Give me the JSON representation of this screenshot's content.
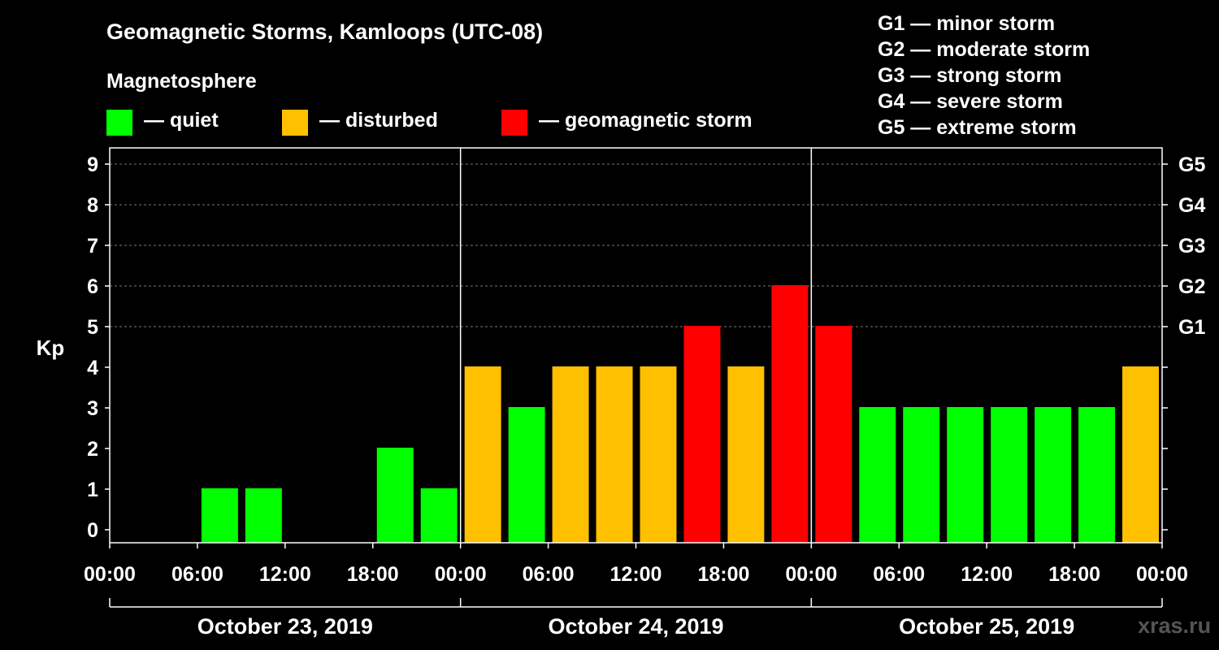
{
  "header": {
    "title": "Geomagnetic Storms, Kamloops (UTC-08)",
    "subtitle": "Magnetosphere"
  },
  "legend": {
    "items": [
      {
        "label": "— quiet",
        "color": "#00ff00"
      },
      {
        "label": "— disturbed",
        "color": "#ffc000"
      },
      {
        "label": "— geomagnetic storm",
        "color": "#ff0000"
      }
    ]
  },
  "g_scale_legend": [
    "G1 — minor storm",
    "G2 — moderate storm",
    "G3 — strong storm",
    "G4 — severe storm",
    "G5 — extreme storm"
  ],
  "watermark": "xras.ru",
  "chart_data": {
    "type": "bar",
    "title": "Geomagnetic Storms, Kamloops (UTC-08)",
    "ylabel": "Kp",
    "ylim": [
      0,
      9
    ],
    "y_ticks": [
      "0",
      "1",
      "2",
      "3",
      "4",
      "5",
      "6",
      "7",
      "8",
      "9"
    ],
    "right_ticks": [
      {
        "kp": 5,
        "label": "G1"
      },
      {
        "kp": 6,
        "label": "G2"
      },
      {
        "kp": 7,
        "label": "G3"
      },
      {
        "kp": 8,
        "label": "G4"
      },
      {
        "kp": 9,
        "label": "G5"
      }
    ],
    "x_tick_labels": [
      "00:00",
      "06:00",
      "12:00",
      "18:00",
      "00:00",
      "06:00",
      "12:00",
      "18:00",
      "00:00",
      "06:00",
      "12:00",
      "18:00",
      "00:00"
    ],
    "days": [
      "October 23, 2019",
      "October 24, 2019",
      "October 25, 2019"
    ],
    "interval_hours": 3,
    "values": [
      0,
      0,
      1,
      1,
      0,
      0,
      2,
      1,
      4,
      3,
      4,
      4,
      4,
      5,
      4,
      6,
      5,
      3,
      3,
      3,
      3,
      3,
      3,
      4
    ],
    "categories": [
      "quiet",
      "quiet",
      "quiet",
      "quiet",
      "quiet",
      "quiet",
      "quiet",
      "quiet",
      "disturbed",
      "quiet",
      "disturbed",
      "disturbed",
      "disturbed",
      "storm",
      "disturbed",
      "storm",
      "storm",
      "quiet",
      "quiet",
      "quiet",
      "quiet",
      "quiet",
      "quiet",
      "disturbed"
    ],
    "category_colors": {
      "quiet": "#00ff00",
      "disturbed": "#ffc000",
      "storm": "#ff0000"
    },
    "grid": true
  }
}
